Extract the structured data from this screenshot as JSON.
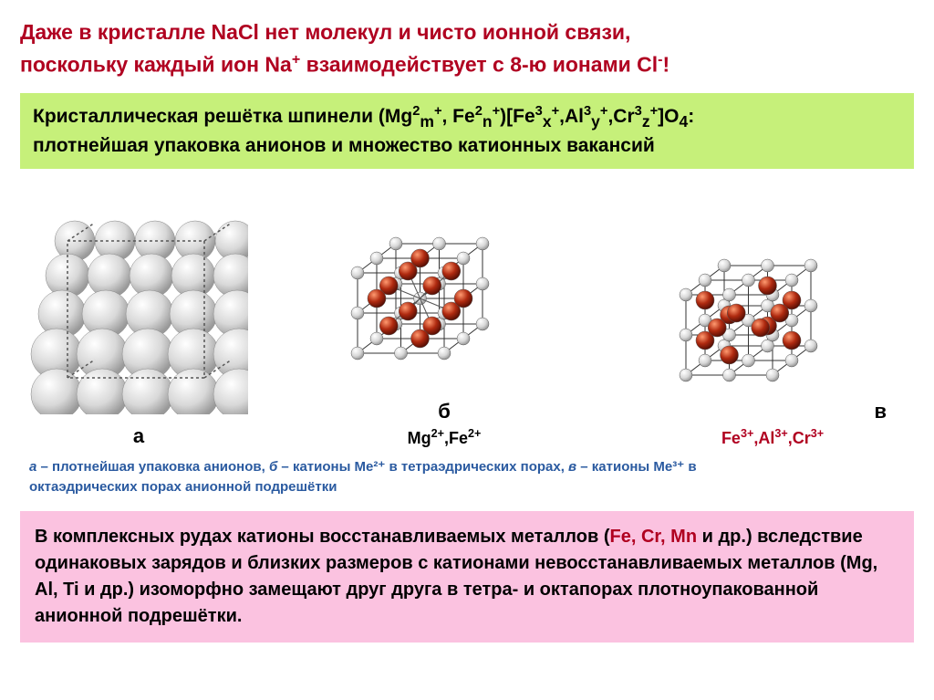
{
  "title_line1": "Даже в кристалле NaCl нет молекул и чисто ионной связи,",
  "title_line2_a": "поскольку каждый ион Na",
  "title_line2_b": " взаимодействует с 8-ю ионами Cl",
  "title_line2_c": "!",
  "greenbox_a": "Кристаллическая решётка шпинели (Mg",
  "greenbox_b": ", Fe",
  "greenbox_c": ")[Fe",
  "greenbox_d": ",Al",
  "greenbox_e": ",Cr",
  "greenbox_f": "]O",
  "greenbox_g": ":",
  "greenbox_line2": "плотнейшая упаковка анионов и множество катионных вакансий",
  "diag_a_letter": "а",
  "diag_b_letter": "б",
  "diag_c_letter": "в",
  "diag_b_chem_a": "Mg",
  "diag_b_chem_b": ",Fe",
  "diag_c_chem_a": "Fe",
  "diag_c_chem_b": ",Al",
  "diag_c_chem_c": ",Cr",
  "caption_a": "а",
  "caption_a_text": " – плотнейшая упаковка анионов, ",
  "caption_b": "б",
  "caption_b_text": " – катионы Me²⁺ в тетраэдрических порах, ",
  "caption_c": "в",
  "caption_c_text": " – катионы Me³⁺ в",
  "caption_line2": "октаэдрических порах анионной подрешётки",
  "pink_a": "В комплексных рудах катионы восстанавливаемых металлов (",
  "pink_metals": "Fe, Cr, Mn",
  "pink_b": " и др.) вследствие одинаковых зарядов и близких размеров с катионами невосстанавливаемых металлов (Mg, Al, Ti и др.) изоморфно замещают друг друга в тетра- и октапорах плотноупакованной анионной подрешётки.",
  "colors": {
    "title": "#b00020",
    "greenbg": "#c6f07a",
    "pinkbg": "#fbc2e0",
    "caption": "#2a5aa0",
    "sphere_light": "#d8d8d8",
    "sphere_dark": "#a02010",
    "diag_c_label": "#b00020"
  },
  "diagrams": {
    "a": {
      "type": "close-packed-spheres",
      "grid": 4,
      "sphere_color": "#d8d8d8"
    },
    "b": {
      "type": "unit-cell",
      "cube": 2,
      "corner_color": "#d8d8d8",
      "inner_color": "#a02010",
      "inner_positions": "tetrahedral"
    },
    "c": {
      "type": "unit-cell",
      "cube": 2,
      "corner_color": "#d8d8d8",
      "inner_color": "#a02010",
      "inner_positions": "octahedral"
    }
  }
}
